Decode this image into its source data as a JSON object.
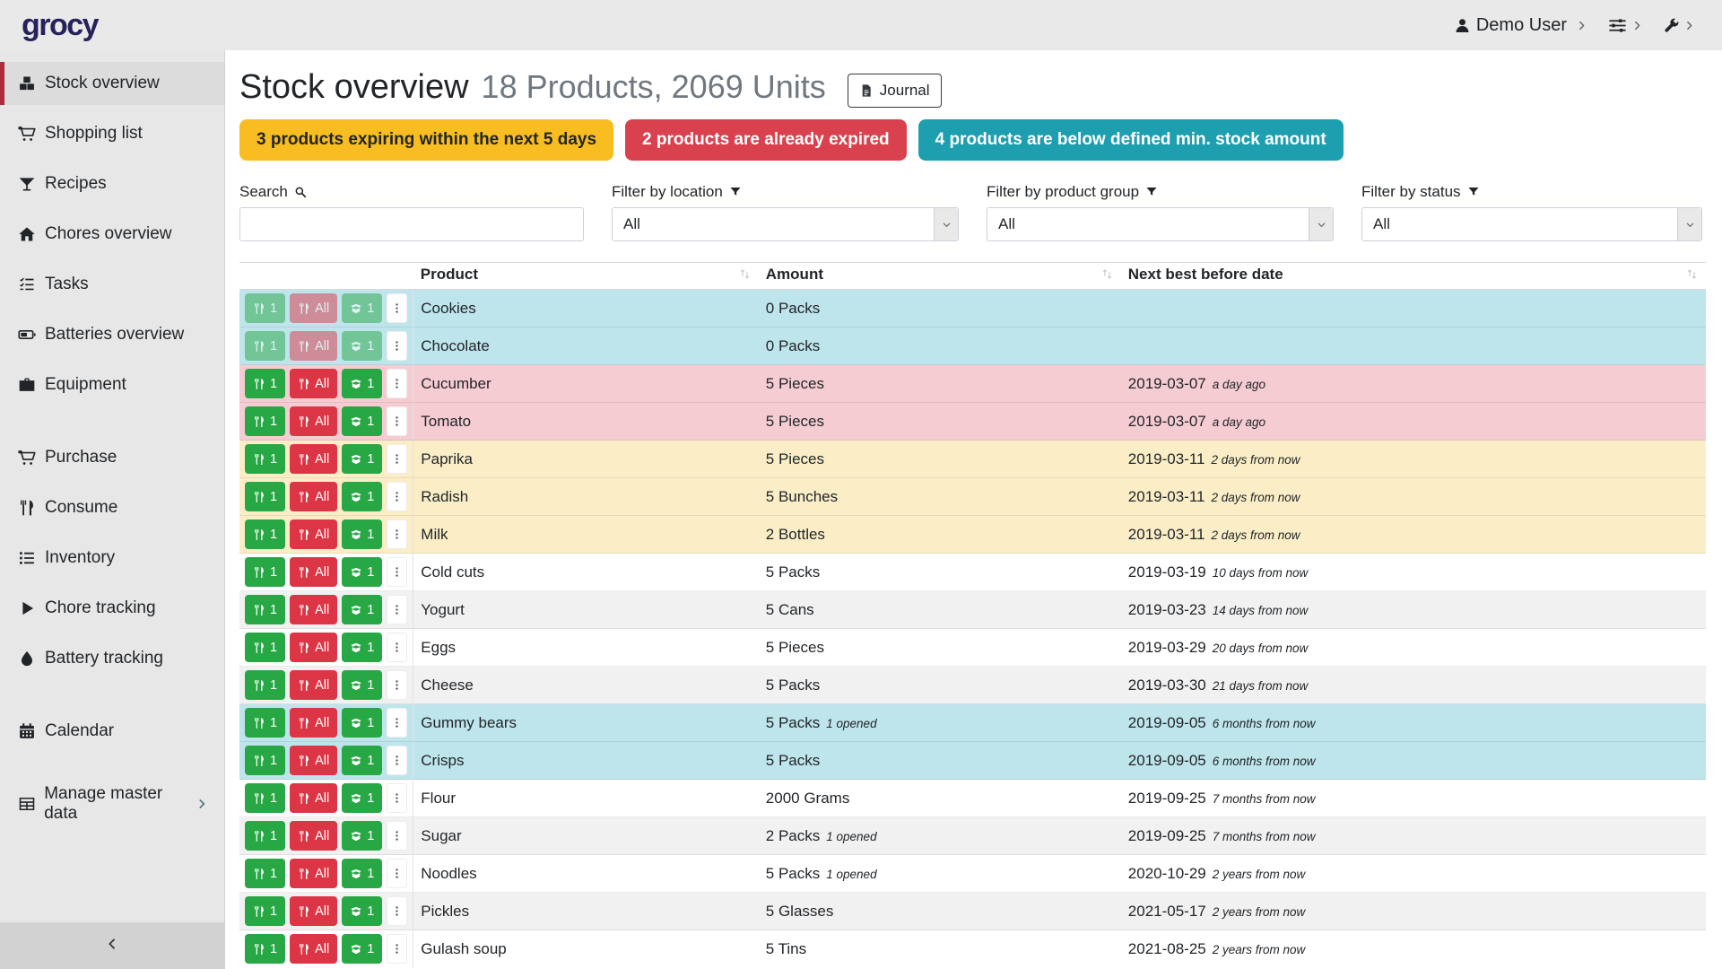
{
  "app": {
    "logo": "grocy"
  },
  "colors": {
    "accent_red": "#b0293d",
    "logo": "#26225a",
    "topbar_bg": "#e9e9e9",
    "sidebar_bg": "#e7e7e7",
    "sidebar_active_bg": "#dcdcdc",
    "sidebar_footer_bg": "#d2d2d2",
    "row_info": "#bee5eb",
    "row_danger": "#f6ccd3",
    "row_warning": "#fbeec7",
    "row_stripe": "#f1f1f1",
    "btn_success": "#28a745",
    "btn_danger": "#dc3545"
  },
  "topbar": {
    "user_label": "Demo User",
    "user_icon": "user-icon",
    "user_chevron": "chevron-right-icon",
    "settings_icon": "sliders-icon",
    "settings_chevron": "chevron-right-icon",
    "admin_icon": "wrench-icon",
    "admin_chevron": "chevron-right-icon"
  },
  "sidebar": {
    "items": [
      {
        "label": "Stock overview",
        "icon": "boxes-icon",
        "active": true
      },
      {
        "label": "Shopping list",
        "icon": "shopping-cart-icon"
      },
      {
        "label": "Recipes",
        "icon": "cocktail-icon"
      },
      {
        "label": "Chores overview",
        "icon": "home-icon"
      },
      {
        "label": "Tasks",
        "icon": "tasks-icon"
      },
      {
        "label": "Batteries overview",
        "icon": "battery-icon"
      },
      {
        "label": "Equipment",
        "icon": "toolbox-icon"
      },
      {
        "label": "Purchase",
        "icon": "shopping-cart-icon",
        "gap_before": true
      },
      {
        "label": "Consume",
        "icon": "utensils-icon"
      },
      {
        "label": "Inventory",
        "icon": "list-icon"
      },
      {
        "label": "Chore tracking",
        "icon": "play-icon"
      },
      {
        "label": "Battery tracking",
        "icon": "droplet-icon"
      },
      {
        "label": "Calendar",
        "icon": "calendar-icon",
        "gap_before": true
      },
      {
        "label": "Manage master data",
        "icon": "table-icon",
        "gap_before": true,
        "trailing_icon": "chevron-right-icon"
      }
    ],
    "collapse_icon": "chevron-left-icon"
  },
  "header": {
    "title": "Stock overview",
    "subtitle": "18 Products, 2069 Units",
    "journal_label": "Journal",
    "journal_icon": "journal-icon"
  },
  "badges": [
    {
      "text": "3 products expiring within the next 5 days",
      "bg": "#f8bd20",
      "fg": "#212529"
    },
    {
      "text": "2 products are already expired",
      "bg": "#d9414f",
      "fg": "#ffffff"
    },
    {
      "text": "4 products are below defined min. stock amount",
      "bg": "#1d9fb0",
      "fg": "#ffffff"
    }
  ],
  "filters": {
    "search": {
      "label": "Search",
      "icon": "search-icon",
      "value": "",
      "placeholder": ""
    },
    "location": {
      "label": "Filter by location",
      "icon": "filter-icon",
      "value": "All"
    },
    "product_group": {
      "label": "Filter by product group",
      "icon": "filter-icon",
      "value": "All"
    },
    "status": {
      "label": "Filter by status",
      "icon": "filter-icon",
      "value": "All"
    }
  },
  "table": {
    "columns": [
      "Product",
      "Amount",
      "Next best before date"
    ],
    "sort_icon": "sort-icon",
    "row_actions": {
      "consume_one": {
        "label": "1",
        "icon": "utensils-icon"
      },
      "consume_all": {
        "label": "All",
        "icon": "utensils-icon"
      },
      "open_one": {
        "label": "1",
        "icon": "box-open-icon"
      },
      "menu_icon": "ellipsis-v-icon"
    },
    "rows": [
      {
        "product": "Cookies",
        "amount": "0 Packs",
        "amount_note": "",
        "date": "",
        "date_note": "",
        "status": "info",
        "stripe": false,
        "actions_disabled": true
      },
      {
        "product": "Chocolate",
        "amount": "0 Packs",
        "amount_note": "",
        "date": "",
        "date_note": "",
        "status": "info",
        "stripe": false,
        "actions_disabled": true
      },
      {
        "product": "Cucumber",
        "amount": "5 Pieces",
        "amount_note": "",
        "date": "2019-03-07",
        "date_note": "a day ago",
        "status": "danger",
        "stripe": false,
        "actions_disabled": false
      },
      {
        "product": "Tomato",
        "amount": "5 Pieces",
        "amount_note": "",
        "date": "2019-03-07",
        "date_note": "a day ago",
        "status": "danger",
        "stripe": false,
        "actions_disabled": false
      },
      {
        "product": "Paprika",
        "amount": "5 Pieces",
        "amount_note": "",
        "date": "2019-03-11",
        "date_note": "2 days from now",
        "status": "warning",
        "stripe": false,
        "actions_disabled": false
      },
      {
        "product": "Radish",
        "amount": "5 Bunches",
        "amount_note": "",
        "date": "2019-03-11",
        "date_note": "2 days from now",
        "status": "warning",
        "stripe": false,
        "actions_disabled": false
      },
      {
        "product": "Milk",
        "amount": "2 Bottles",
        "amount_note": "",
        "date": "2019-03-11",
        "date_note": "2 days from now",
        "status": "warning",
        "stripe": false,
        "actions_disabled": false
      },
      {
        "product": "Cold cuts",
        "amount": "5 Packs",
        "amount_note": "",
        "date": "2019-03-19",
        "date_note": "10 days from now",
        "status": "",
        "stripe": false,
        "actions_disabled": false
      },
      {
        "product": "Yogurt",
        "amount": "5 Cans",
        "amount_note": "",
        "date": "2019-03-23",
        "date_note": "14 days from now",
        "status": "",
        "stripe": true,
        "actions_disabled": false
      },
      {
        "product": "Eggs",
        "amount": "5 Pieces",
        "amount_note": "",
        "date": "2019-03-29",
        "date_note": "20 days from now",
        "status": "",
        "stripe": false,
        "actions_disabled": false
      },
      {
        "product": "Cheese",
        "amount": "5 Packs",
        "amount_note": "",
        "date": "2019-03-30",
        "date_note": "21 days from now",
        "status": "",
        "stripe": true,
        "actions_disabled": false
      },
      {
        "product": "Gummy bears",
        "amount": "5 Packs",
        "amount_note": "1 opened",
        "date": "2019-09-05",
        "date_note": "6 months from now",
        "status": "info",
        "stripe": false,
        "actions_disabled": false
      },
      {
        "product": "Crisps",
        "amount": "5 Packs",
        "amount_note": "",
        "date": "2019-09-05",
        "date_note": "6 months from now",
        "status": "info",
        "stripe": false,
        "actions_disabled": false
      },
      {
        "product": "Flour",
        "amount": "2000 Grams",
        "amount_note": "",
        "date": "2019-09-25",
        "date_note": "7 months from now",
        "status": "",
        "stripe": false,
        "actions_disabled": false
      },
      {
        "product": "Sugar",
        "amount": "2 Packs",
        "amount_note": "1 opened",
        "date": "2019-09-25",
        "date_note": "7 months from now",
        "status": "",
        "stripe": true,
        "actions_disabled": false
      },
      {
        "product": "Noodles",
        "amount": "5 Packs",
        "amount_note": "1 opened",
        "date": "2020-10-29",
        "date_note": "2 years from now",
        "status": "",
        "stripe": false,
        "actions_disabled": false
      },
      {
        "product": "Pickles",
        "amount": "5 Glasses",
        "amount_note": "",
        "date": "2021-05-17",
        "date_note": "2 years from now",
        "status": "",
        "stripe": true,
        "actions_disabled": false
      },
      {
        "product": "Gulash soup",
        "amount": "5 Tins",
        "amount_note": "",
        "date": "2021-08-25",
        "date_note": "2 years from now",
        "status": "",
        "stripe": false,
        "actions_disabled": false
      }
    ]
  }
}
